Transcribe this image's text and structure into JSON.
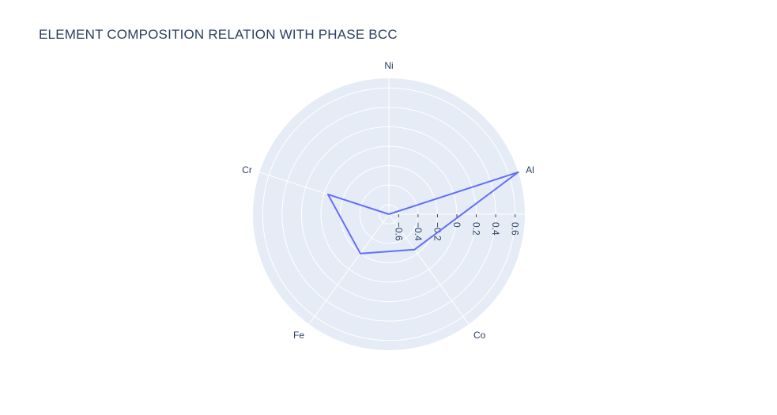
{
  "chart_data": {
    "type": "radar",
    "title": "ELEMENT COMPOSITION RELATION WITH PHASE BCC",
    "categories": [
      "Ni",
      "Al",
      "Co",
      "Fe",
      "Cr"
    ],
    "series": [
      {
        "name": "",
        "values": [
          -0.7,
          0.7,
          -0.25,
          -0.2,
          -0.04
        ],
        "color": "#636efa"
      }
    ],
    "radial_range": [
      -0.7,
      0.7
    ],
    "radial_ticks": [
      -0.6,
      -0.4,
      -0.2,
      0,
      0.2,
      0.4,
      0.6
    ],
    "radial_tick_labels": [
      "−0.6",
      "−0.4",
      "−0.2",
      "0",
      "0.2",
      "0.4",
      "0.6"
    ],
    "grid": true,
    "colors": {
      "polar_bg": "#e5ecf6",
      "grid": "#ffffff",
      "text": "#2a3f5f"
    }
  }
}
